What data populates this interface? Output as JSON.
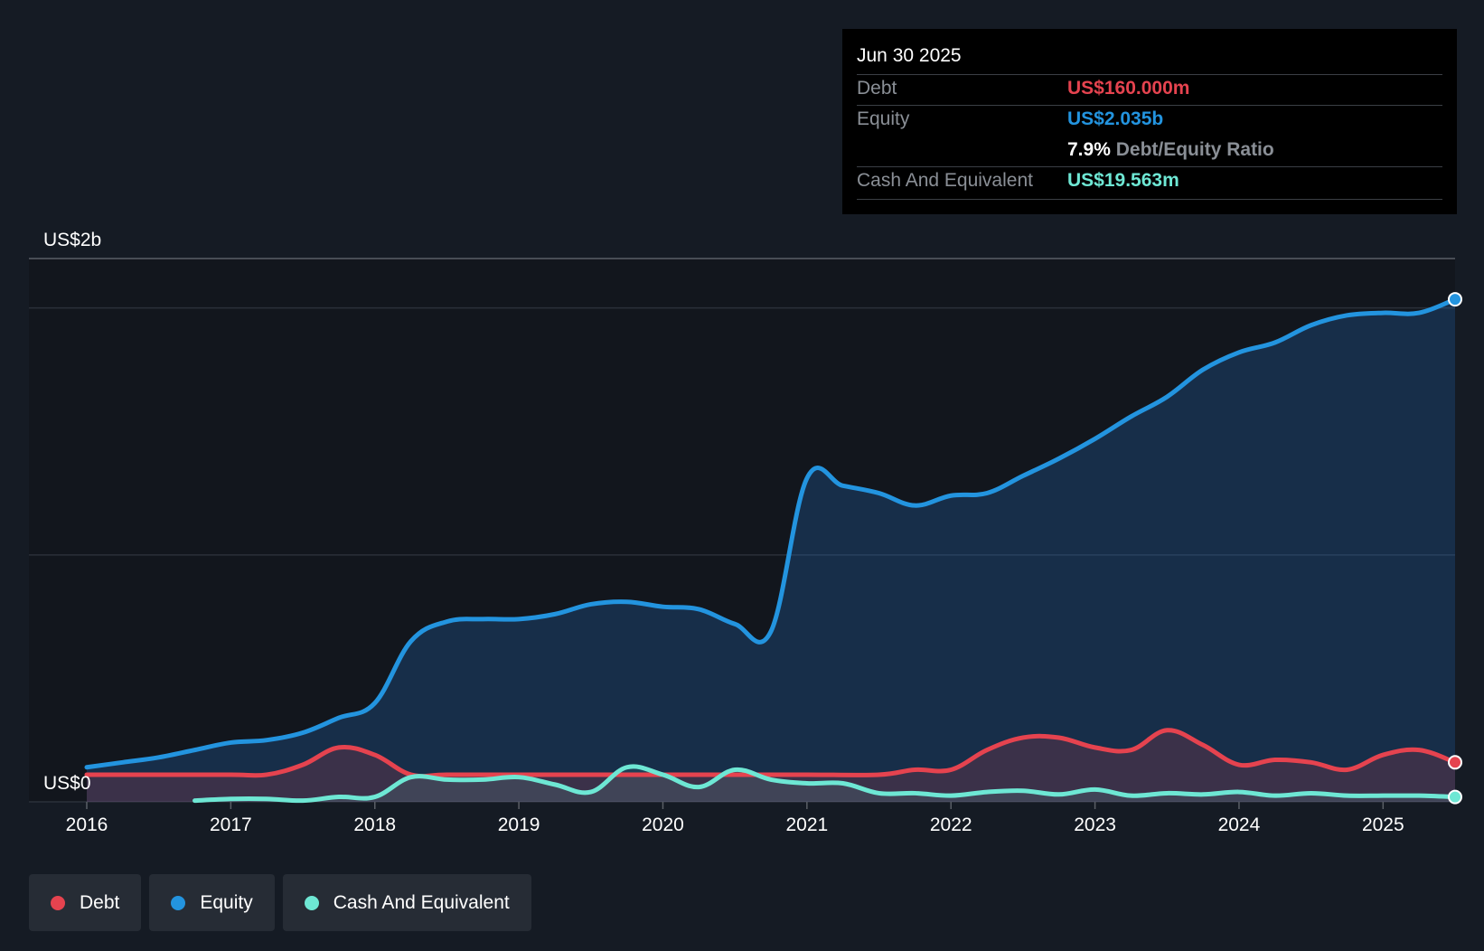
{
  "tooltip": {
    "date": "Jun 30 2025",
    "rows": [
      {
        "label": "Debt",
        "value": "US$160.000m",
        "color": "#e5434f"
      },
      {
        "label": "Equity",
        "value": "US$2.035b",
        "color": "#2394df"
      },
      {
        "label": "Cash And Equivalent",
        "value": "US$19.563m",
        "color": "#6ee7d4"
      }
    ],
    "ratio_pct": "7.9%",
    "ratio_label": "Debt/Equity Ratio"
  },
  "legend": [
    {
      "label": "Debt",
      "color": "#e5434f"
    },
    {
      "label": "Equity",
      "color": "#2394df"
    },
    {
      "label": "Cash And Equivalent",
      "color": "#6ee7d4"
    }
  ],
  "chart_data": {
    "type": "area",
    "title": "",
    "xlabel": "",
    "ylabel": "",
    "ylim": [
      0,
      2.2
    ],
    "y_unit": "US$ billions",
    "y_tick_labels": [
      {
        "value": 0,
        "label": "US$0"
      },
      {
        "value": 2.2,
        "label": "US$2b"
      }
    ],
    "x_ticks": [
      2016,
      2017,
      2018,
      2019,
      2020,
      2021,
      2022,
      2023,
      2024,
      2025
    ],
    "xlim": [
      2016,
      2025.5
    ],
    "series": [
      {
        "name": "Equity",
        "color": "#2394df",
        "points": [
          [
            2016.0,
            0.14
          ],
          [
            2016.25,
            0.16
          ],
          [
            2016.5,
            0.18
          ],
          [
            2016.75,
            0.21
          ],
          [
            2017.0,
            0.24
          ],
          [
            2017.25,
            0.25
          ],
          [
            2017.5,
            0.28
          ],
          [
            2017.75,
            0.34
          ],
          [
            2018.0,
            0.4
          ],
          [
            2018.25,
            0.65
          ],
          [
            2018.5,
            0.73
          ],
          [
            2018.75,
            0.74
          ],
          [
            2019.0,
            0.74
          ],
          [
            2019.25,
            0.76
          ],
          [
            2019.5,
            0.8
          ],
          [
            2019.75,
            0.81
          ],
          [
            2020.0,
            0.79
          ],
          [
            2020.25,
            0.78
          ],
          [
            2020.5,
            0.72
          ],
          [
            2020.75,
            0.69
          ],
          [
            2021.0,
            1.31
          ],
          [
            2021.25,
            1.28
          ],
          [
            2021.5,
            1.25
          ],
          [
            2021.75,
            1.2
          ],
          [
            2022.0,
            1.24
          ],
          [
            2022.25,
            1.25
          ],
          [
            2022.5,
            1.32
          ],
          [
            2022.75,
            1.39
          ],
          [
            2023.0,
            1.47
          ],
          [
            2023.25,
            1.56
          ],
          [
            2023.5,
            1.64
          ],
          [
            2023.75,
            1.75
          ],
          [
            2024.0,
            1.82
          ],
          [
            2024.25,
            1.86
          ],
          [
            2024.5,
            1.93
          ],
          [
            2024.75,
            1.97
          ],
          [
            2025.0,
            1.98
          ],
          [
            2025.25,
            1.98
          ],
          [
            2025.5,
            2.035
          ]
        ]
      },
      {
        "name": "Debt",
        "color": "#e5434f",
        "points": [
          [
            2016.0,
            0.11
          ],
          [
            2016.5,
            0.11
          ],
          [
            2017.0,
            0.11
          ],
          [
            2017.25,
            0.11
          ],
          [
            2017.5,
            0.15
          ],
          [
            2017.75,
            0.22
          ],
          [
            2018.0,
            0.19
          ],
          [
            2018.25,
            0.11
          ],
          [
            2018.5,
            0.11
          ],
          [
            2019.0,
            0.11
          ],
          [
            2019.5,
            0.11
          ],
          [
            2020.0,
            0.11
          ],
          [
            2020.5,
            0.11
          ],
          [
            2021.0,
            0.11
          ],
          [
            2021.5,
            0.11
          ],
          [
            2021.75,
            0.13
          ],
          [
            2022.0,
            0.13
          ],
          [
            2022.25,
            0.21
          ],
          [
            2022.5,
            0.26
          ],
          [
            2022.75,
            0.26
          ],
          [
            2023.0,
            0.22
          ],
          [
            2023.25,
            0.21
          ],
          [
            2023.5,
            0.29
          ],
          [
            2023.75,
            0.23
          ],
          [
            2024.0,
            0.15
          ],
          [
            2024.25,
            0.17
          ],
          [
            2024.5,
            0.16
          ],
          [
            2024.75,
            0.13
          ],
          [
            2025.0,
            0.19
          ],
          [
            2025.25,
            0.21
          ],
          [
            2025.5,
            0.16
          ]
        ]
      },
      {
        "name": "Cash And Equivalent",
        "color": "#6ee7d4",
        "points": [
          [
            2016.75,
            0.005
          ],
          [
            2017.0,
            0.012
          ],
          [
            2017.25,
            0.012
          ],
          [
            2017.5,
            0.005
          ],
          [
            2017.75,
            0.02
          ],
          [
            2018.0,
            0.02
          ],
          [
            2018.25,
            0.1
          ],
          [
            2018.5,
            0.09
          ],
          [
            2018.75,
            0.09
          ],
          [
            2019.0,
            0.1
          ],
          [
            2019.25,
            0.07
          ],
          [
            2019.5,
            0.04
          ],
          [
            2019.75,
            0.14
          ],
          [
            2020.0,
            0.11
          ],
          [
            2020.25,
            0.06
          ],
          [
            2020.5,
            0.13
          ],
          [
            2020.75,
            0.09
          ],
          [
            2021.0,
            0.075
          ],
          [
            2021.25,
            0.075
          ],
          [
            2021.5,
            0.035
          ],
          [
            2021.75,
            0.035
          ],
          [
            2022.0,
            0.025
          ],
          [
            2022.25,
            0.04
          ],
          [
            2022.5,
            0.045
          ],
          [
            2022.75,
            0.03
          ],
          [
            2023.0,
            0.05
          ],
          [
            2023.25,
            0.025
          ],
          [
            2023.5,
            0.035
          ],
          [
            2023.75,
            0.03
          ],
          [
            2024.0,
            0.04
          ],
          [
            2024.25,
            0.025
          ],
          [
            2024.5,
            0.035
          ],
          [
            2024.75,
            0.025
          ],
          [
            2025.0,
            0.025
          ],
          [
            2025.25,
            0.025
          ],
          [
            2025.5,
            0.0196
          ]
        ]
      }
    ]
  }
}
